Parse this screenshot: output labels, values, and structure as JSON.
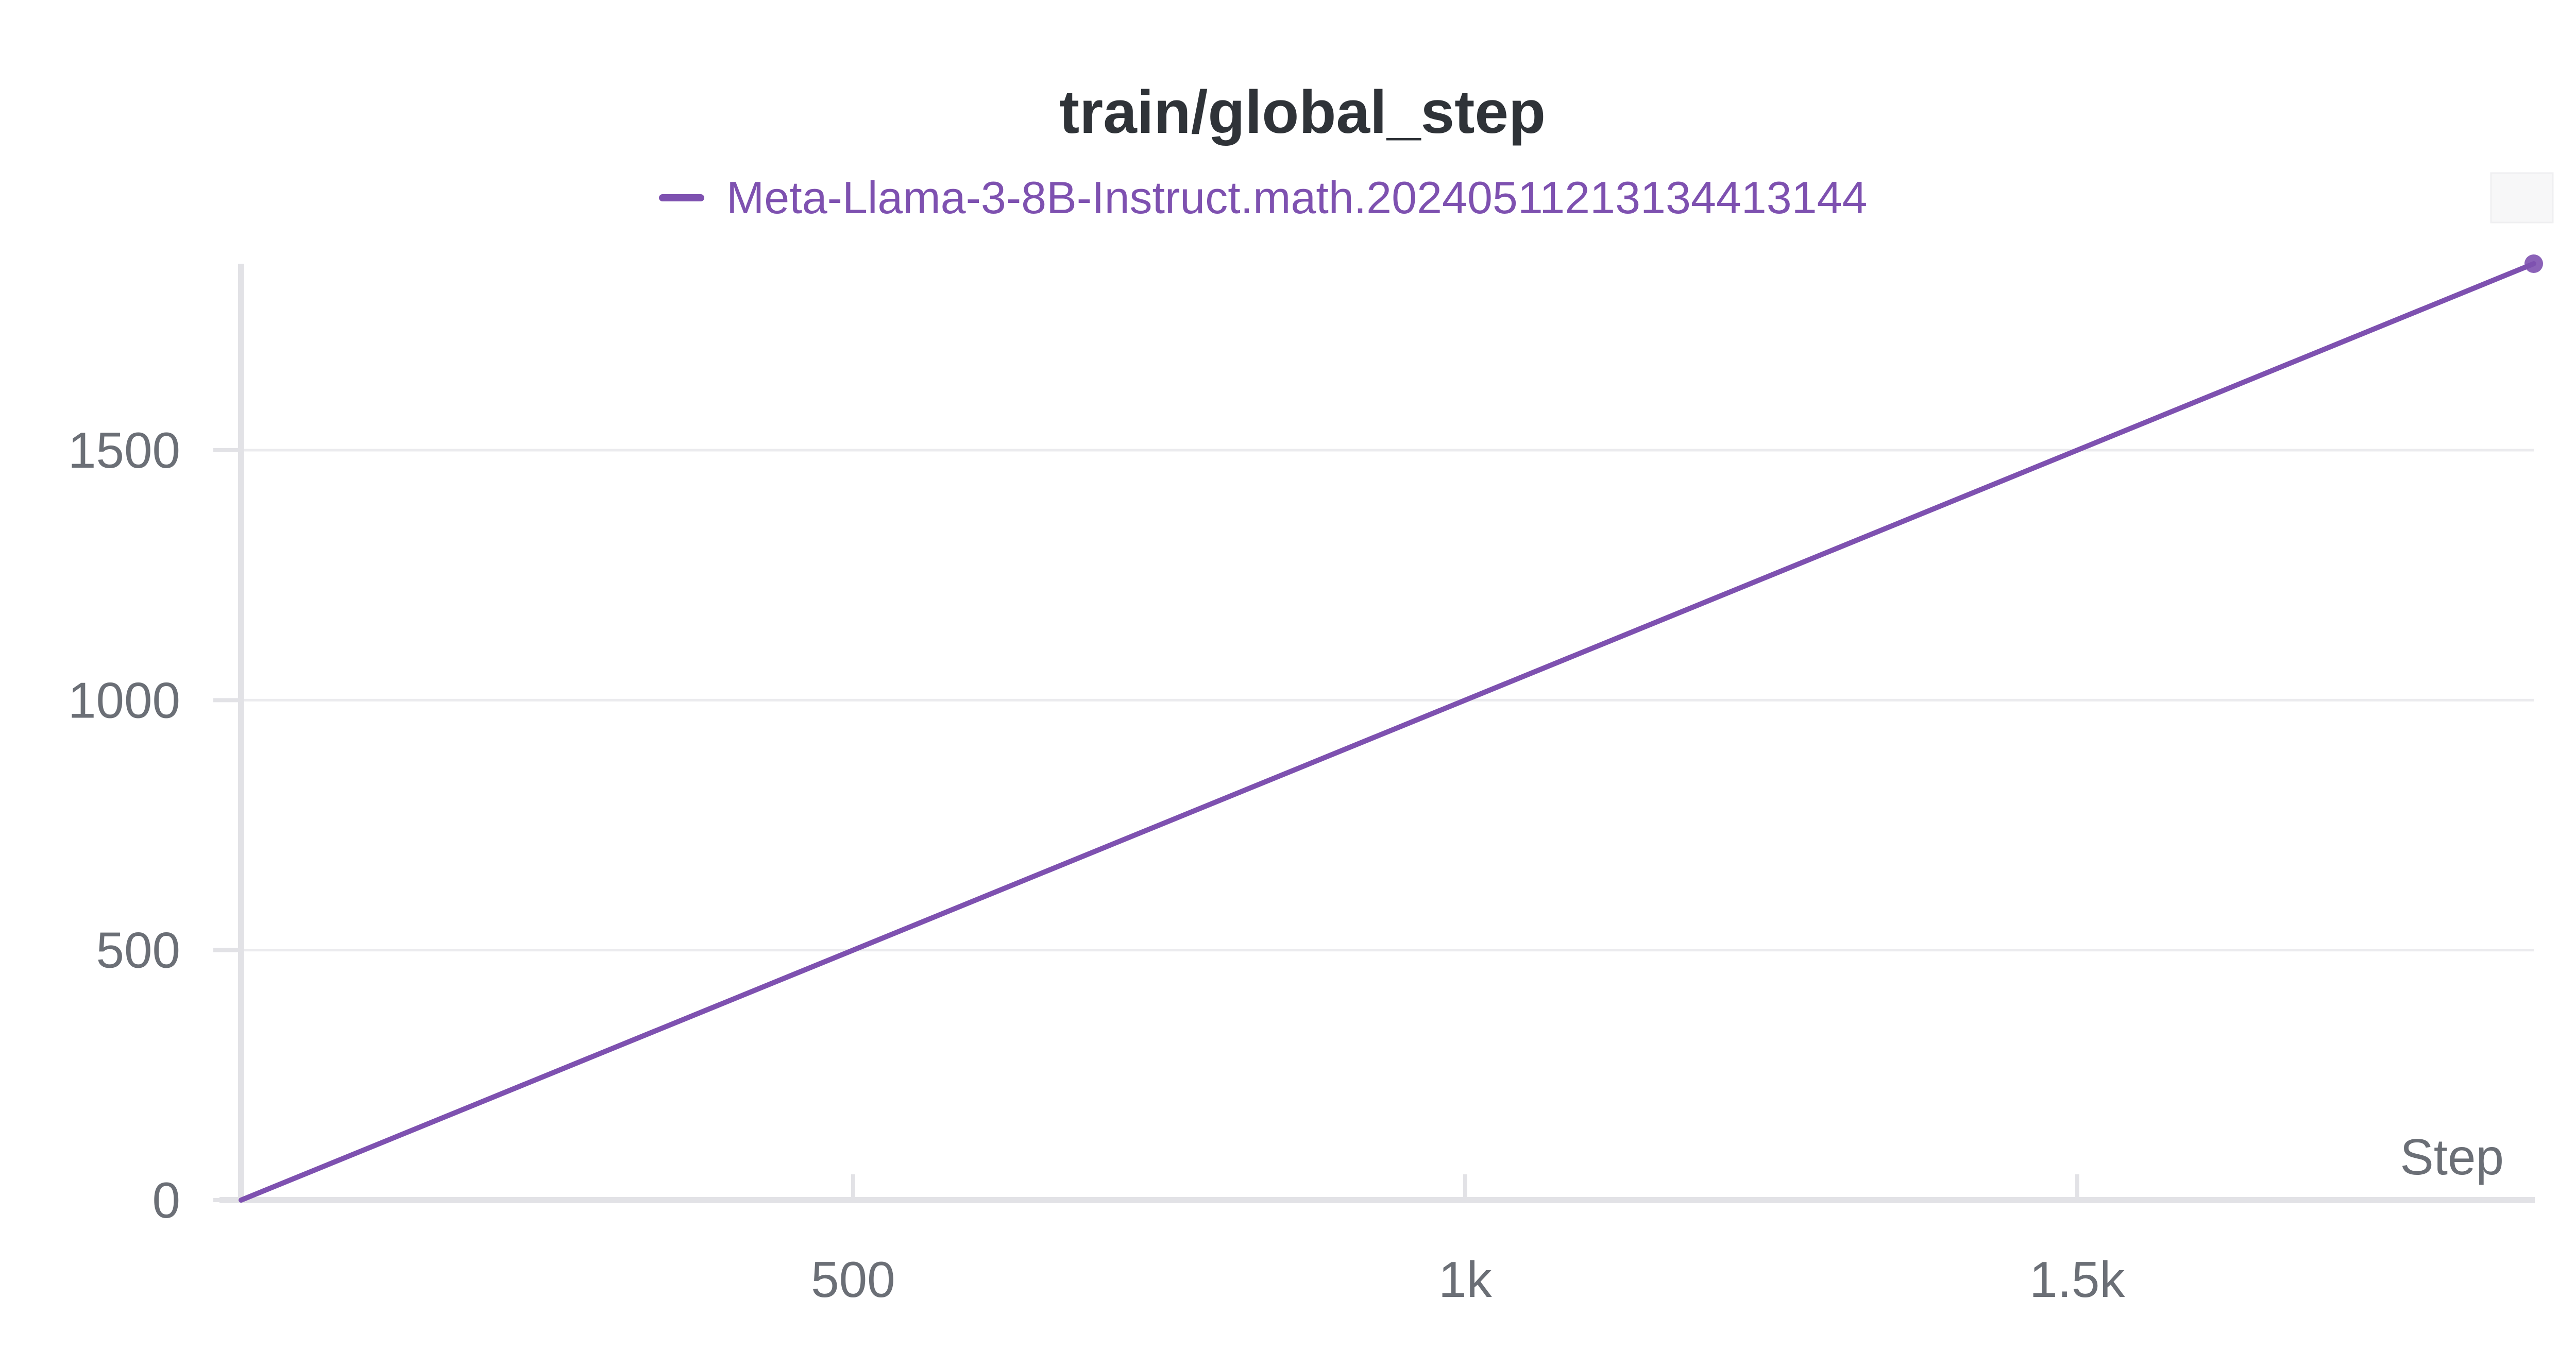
{
  "chart_data": {
    "type": "line",
    "title": "train/global_step",
    "xlabel": "Step",
    "ylabel": "",
    "xlim": [
      0,
      1873
    ],
    "ylim": [
      0,
      1873
    ],
    "x_ticks": [
      500,
      1000,
      1500
    ],
    "x_tick_labels": [
      "500",
      "1k",
      "1.5k"
    ],
    "y_ticks": [
      0,
      500,
      1000,
      1500
    ],
    "y_tick_labels": [
      "0",
      "500",
      "1000",
      "1500"
    ],
    "grid": true,
    "legend_position": "top-center",
    "series": [
      {
        "name": "Meta-Llama-3-8B-Instruct.math.20240511213134413144",
        "color": "#7e51b0",
        "x": [
          0,
          1873
        ],
        "y": [
          0,
          1873
        ]
      }
    ]
  }
}
